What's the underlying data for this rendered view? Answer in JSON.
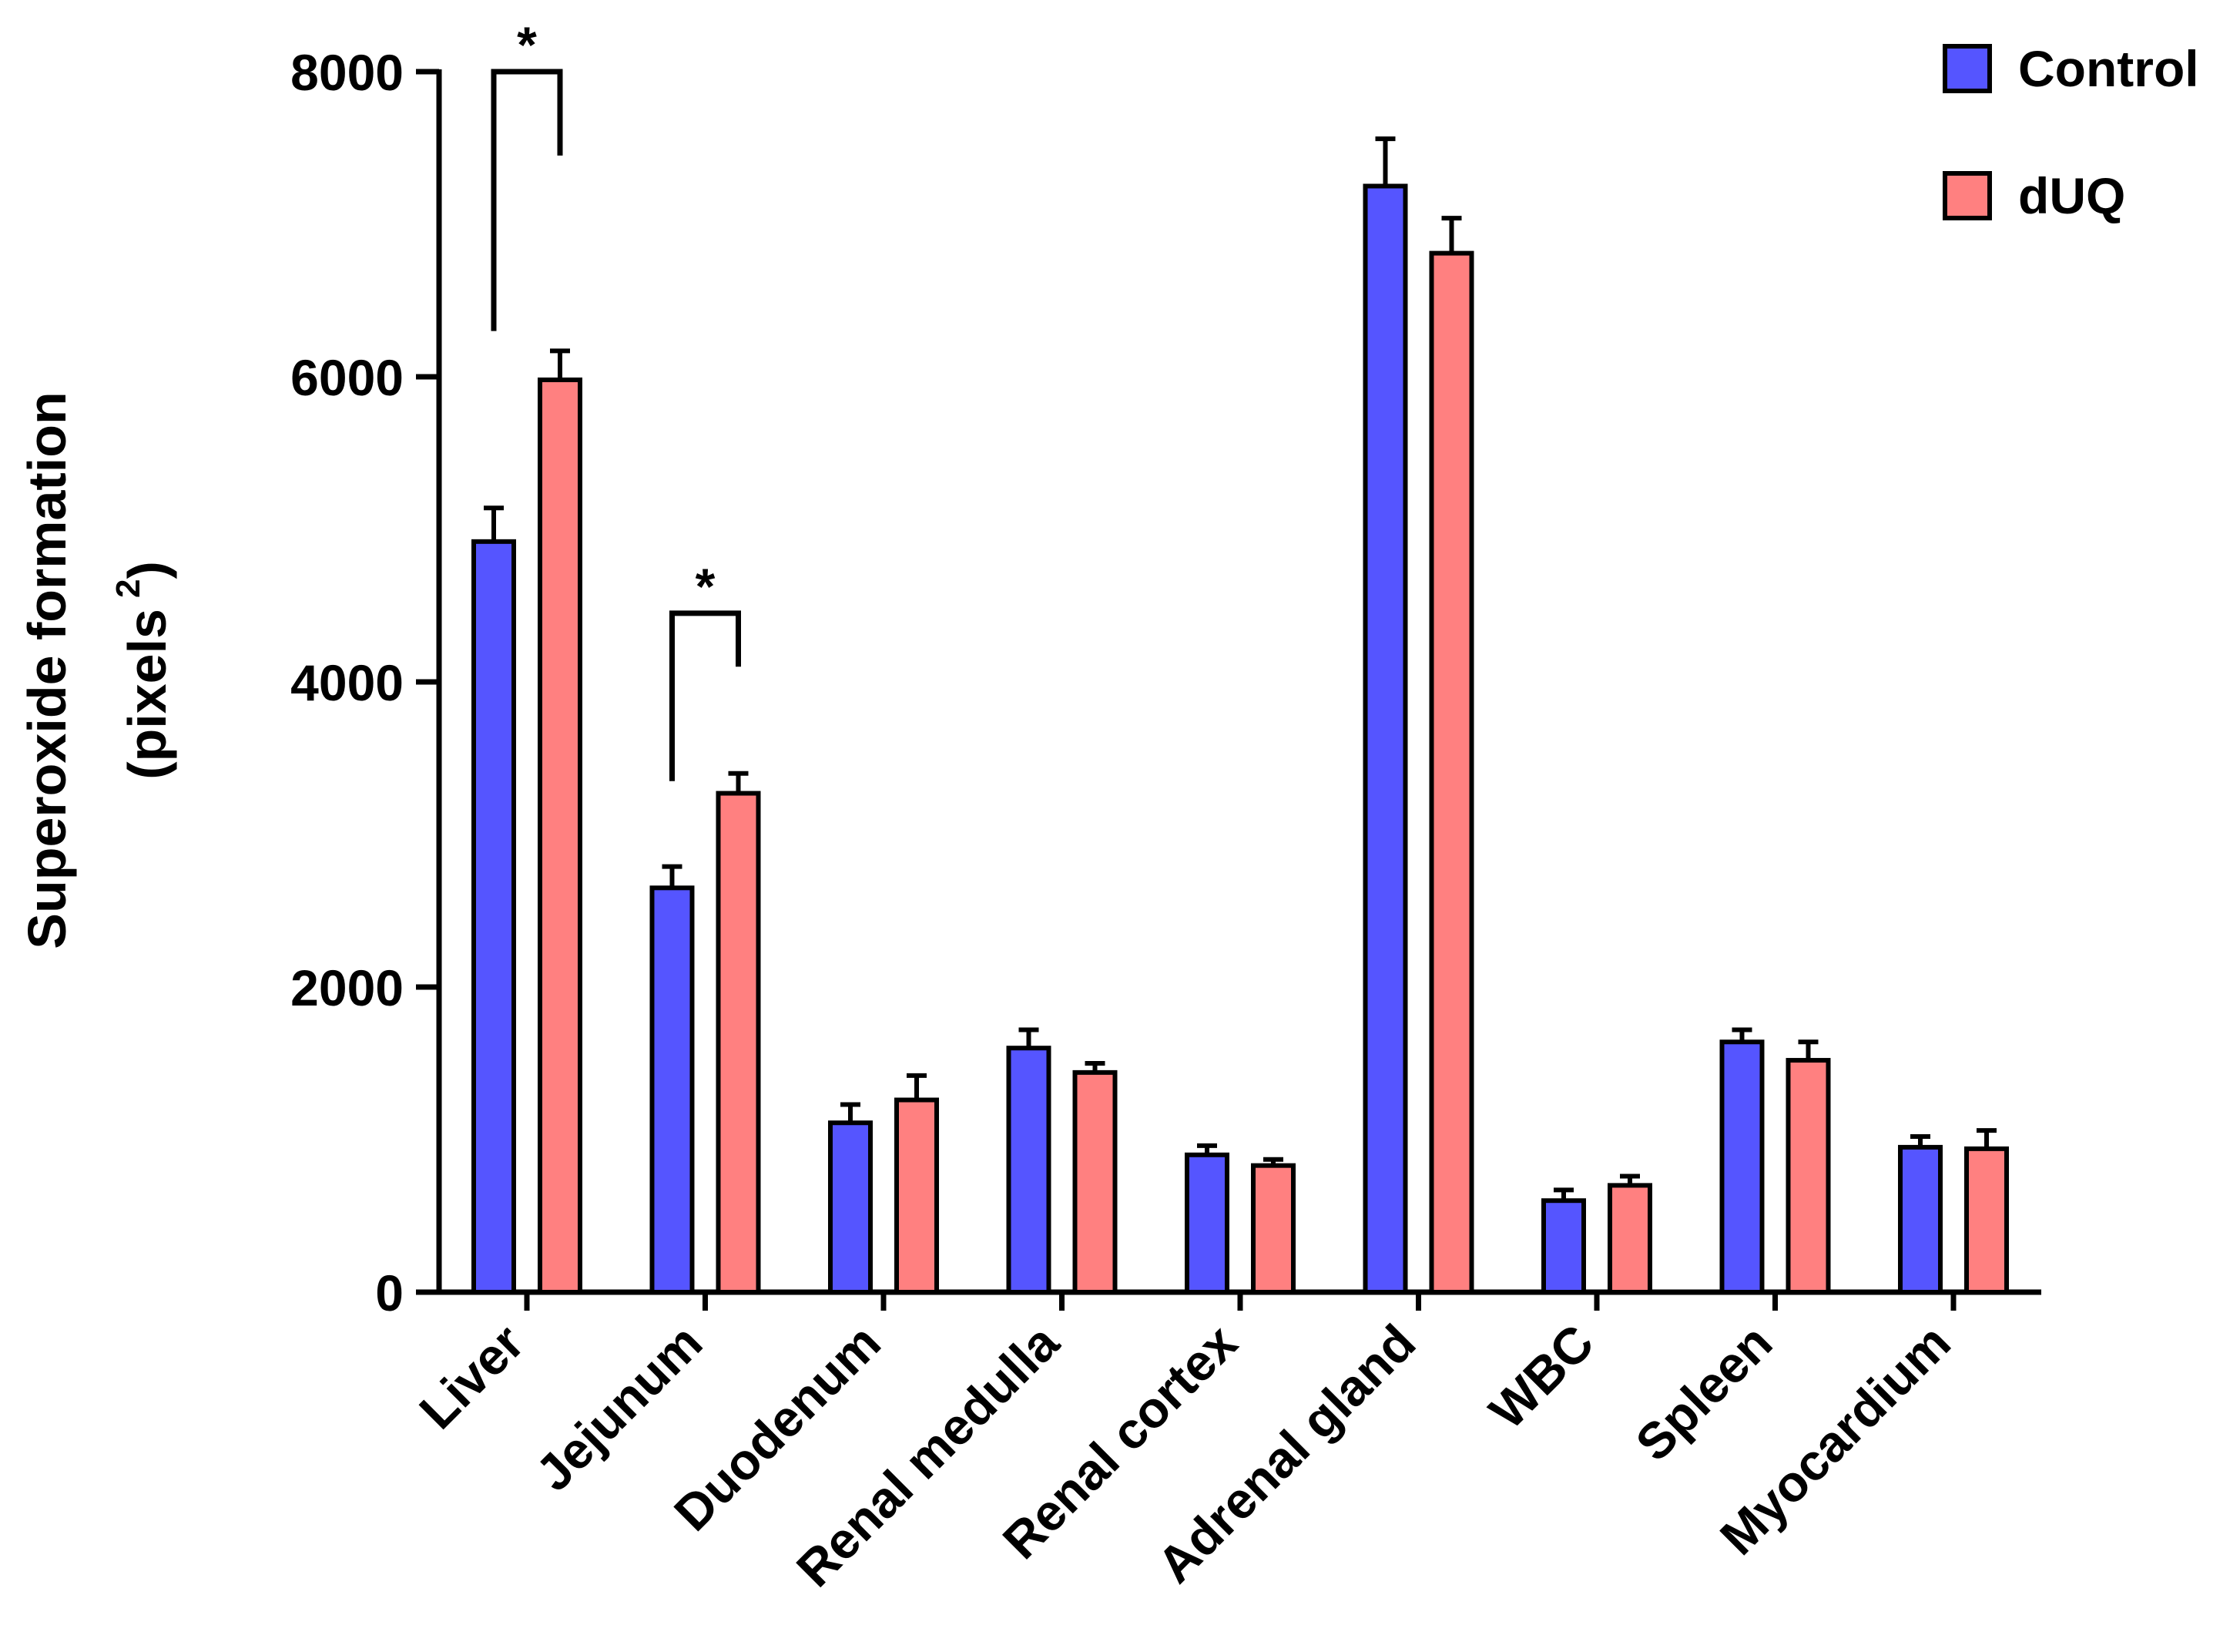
{
  "chart_data": {
    "type": "bar",
    "ylabel_line1": "Superoxide formation",
    "ylabel_line2": "(pixels",
    "ylabel_superscript": "2",
    "ylabel_close": ")",
    "ylim": [
      0,
      8000
    ],
    "yticks": [
      "0",
      "2000",
      "4000",
      "6000",
      "8000"
    ],
    "categories": [
      "Liver",
      "Jejunum",
      "Duodenum",
      "Renal medulla",
      "Renal cortex",
      "Adrenal gland",
      "WBC",
      "Spleen",
      "Myocardium"
    ],
    "series": [
      {
        "name": "Control",
        "color": "#5555ff",
        "values": [
          4920,
          2650,
          1110,
          1600,
          900,
          7250,
          600,
          1640,
          950
        ],
        "errors": [
          220,
          140,
          120,
          120,
          60,
          310,
          70,
          80,
          70
        ]
      },
      {
        "name": "dUQ",
        "color": "#ff8080",
        "values": [
          5980,
          3270,
          1260,
          1440,
          830,
          6810,
          700,
          1520,
          940
        ],
        "errors": [
          190,
          130,
          160,
          60,
          40,
          230,
          60,
          120,
          120
        ]
      }
    ],
    "significance": [
      {
        "category_index": 0,
        "label": "*",
        "y_left": 6300,
        "y_top": 8000,
        "y_right": 7450
      },
      {
        "category_index": 1,
        "label": "*",
        "y_left": 3350,
        "y_top": 4450,
        "y_right": 4100
      }
    ],
    "legend_position": "top-right"
  }
}
